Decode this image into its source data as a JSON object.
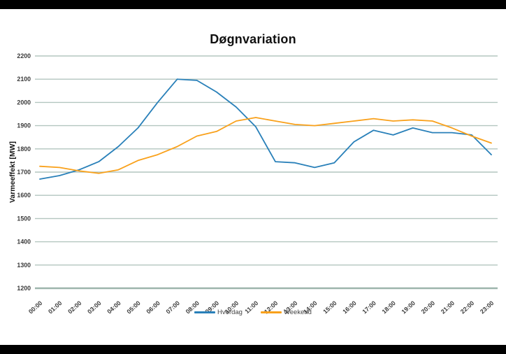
{
  "chart_data": {
    "type": "line",
    "title": "Døgnvariation",
    "ylabel": "Varmeeffekt [MW]",
    "ylim": [
      1200,
      2200
    ],
    "ytick_step": 100,
    "grid": true,
    "legend_position": "bottom-center",
    "yticks": [
      "1200",
      "1300",
      "1400",
      "1500",
      "1600",
      "1700",
      "1800",
      "1900",
      "2000",
      "2100",
      "2200"
    ],
    "categories": [
      "00:00",
      "01:00",
      "02:00",
      "03:00",
      "04:00",
      "05:00",
      "06:00",
      "07:00",
      "08:00",
      "09:00",
      "10:00",
      "11:00",
      "12:00",
      "13:00",
      "14:00",
      "15:00",
      "16:00",
      "17:00",
      "18:00",
      "19:00",
      "20:00",
      "21:00",
      "22:00",
      "23:00"
    ],
    "series": [
      {
        "name": "Hverdag",
        "color": "#2980b9",
        "values": [
          1670,
          1685,
          1710,
          1745,
          1810,
          1890,
          2000,
          2100,
          2095,
          2045,
          1980,
          1895,
          1745,
          1740,
          1720,
          1740,
          1830,
          1880,
          1860,
          1890,
          1870,
          1870,
          1860,
          1775
        ]
      },
      {
        "name": "Weekend",
        "color": "#f9a11b",
        "values": [
          1725,
          1720,
          1705,
          1695,
          1710,
          1750,
          1775,
          1810,
          1855,
          1875,
          1920,
          1935,
          1920,
          1905,
          1900,
          1910,
          1920,
          1930,
          1920,
          1925,
          1920,
          1890,
          1855,
          1825
        ]
      }
    ],
    "colors": {
      "gridline": "#b3c6bf",
      "axis_line": "#9db5ac",
      "tick_label": "#3a3a3a",
      "title": "#111111",
      "legend_text": "#444444",
      "background": "#ffffff",
      "letterbox": "#000000"
    }
  }
}
